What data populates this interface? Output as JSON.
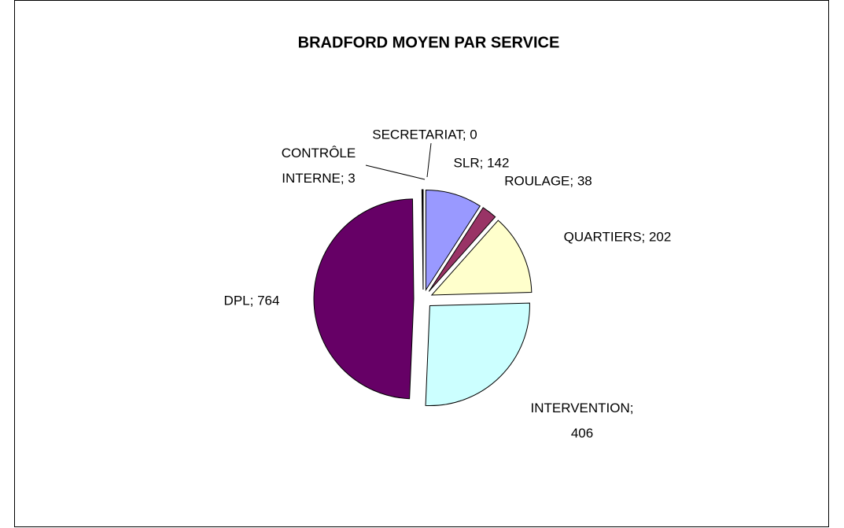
{
  "chart_data": {
    "type": "pie",
    "title": "BRADFORD MOYEN PAR SERVICE",
    "labels": [
      "SECRETARIAT; 0",
      "SLR; 142",
      "ROULAGE; 38",
      "QUARTIERS; 202",
      "INTERVENTION; 406",
      "DPL; 764",
      "CONTRÔLE INTERNE; 3"
    ],
    "values": [
      0,
      142,
      38,
      202,
      406,
      764,
      3
    ],
    "colors": [
      "#ffffff",
      "#9999ff",
      "#993366",
      "#ffffcc",
      "#ccffff",
      "#660066",
      "#000000"
    ]
  }
}
